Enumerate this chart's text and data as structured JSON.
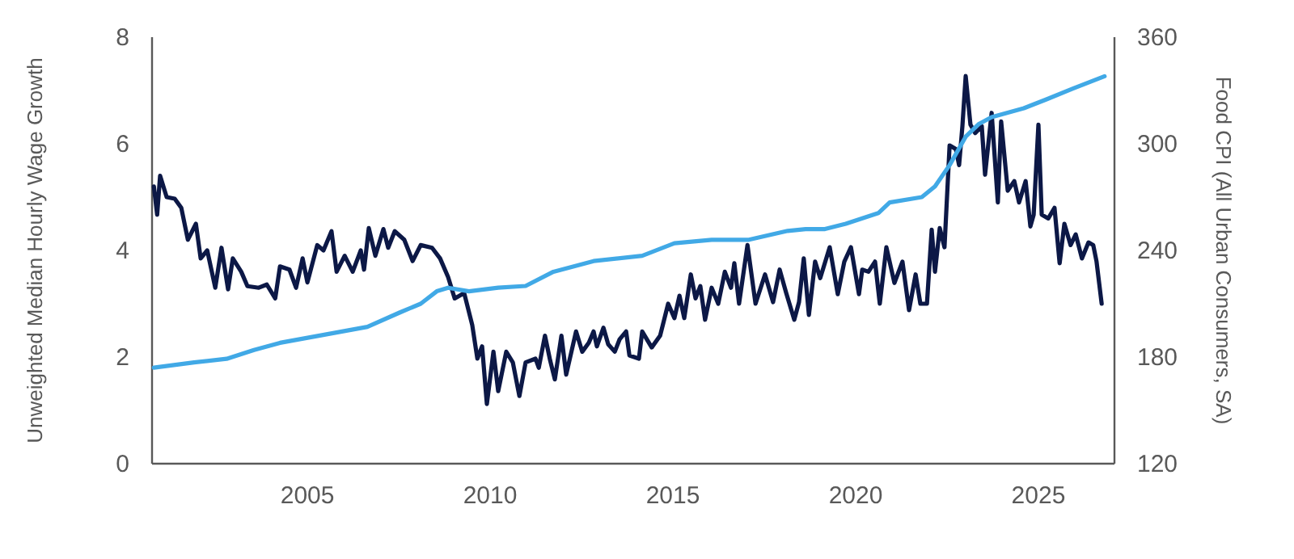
{
  "chart_data": {
    "type": "line",
    "ylabel": "Unweighted Median Hourly Wage Growth",
    "y2label": "Food CPI (All Urban Consumers, SA)",
    "xlim": [
      2000.75,
      2027.08
    ],
    "xticks": [
      2005,
      2010,
      2015,
      2020,
      2025
    ],
    "ylim": [
      0,
      8
    ],
    "yticks": [
      0,
      2,
      4,
      6,
      8
    ],
    "y2lim": [
      120,
      360
    ],
    "y2ticks": [
      120,
      180,
      240,
      300,
      360
    ],
    "grid": false,
    "marker": "none",
    "line_style": "solid",
    "series": [
      {
        "color": "#0c1846",
        "x": [
          2000.8,
          2000.89,
          2000.97,
          2001.15,
          2001.37,
          2001.55,
          2001.73,
          2001.95,
          2002.08,
          2002.26,
          2002.48,
          2002.65,
          2002.83,
          2002.96,
          2003.19,
          2003.36,
          2003.67,
          2003.89,
          2004.12,
          2004.25,
          2004.51,
          2004.69,
          2004.87,
          2005.0,
          2005.27,
          2005.44,
          2005.66,
          2005.8,
          2006.02,
          2006.24,
          2006.46,
          2006.55,
          2006.68,
          2006.86,
          2007.08,
          2007.21,
          2007.39,
          2007.65,
          2007.88,
          2008.1,
          2008.41,
          2008.63,
          2008.85,
          2009.03,
          2009.29,
          2009.51,
          2009.65,
          2009.78,
          2009.91,
          2010.09,
          2010.22,
          2010.44,
          2010.62,
          2010.8,
          2010.97,
          2011.24,
          2011.33,
          2011.5,
          2011.64,
          2011.77,
          2011.95,
          2012.08,
          2012.35,
          2012.52,
          2012.7,
          2012.83,
          2012.92,
          2013.1,
          2013.23,
          2013.41,
          2013.54,
          2013.72,
          2013.81,
          2014.07,
          2014.16,
          2014.42,
          2014.65,
          2014.87,
          2015.04,
          2015.18,
          2015.31,
          2015.49,
          2015.62,
          2015.75,
          2015.88,
          2016.06,
          2016.24,
          2016.42,
          2016.59,
          2016.68,
          2016.81,
          2017.04,
          2017.26,
          2017.52,
          2017.74,
          2017.92,
          2018.1,
          2018.32,
          2018.45,
          2018.58,
          2018.72,
          2018.89,
          2019.03,
          2019.29,
          2019.51,
          2019.69,
          2019.87,
          2020.09,
          2020.18,
          2020.35,
          2020.53,
          2020.66,
          2020.84,
          2021.06,
          2021.28,
          2021.46,
          2021.64,
          2021.77,
          2021.95,
          2022.08,
          2022.17,
          2022.3,
          2022.43,
          2022.57,
          2022.74,
          2022.83,
          2022.92,
          2023.01,
          2023.14,
          2023.27,
          2023.45,
          2023.54,
          2023.72,
          2023.89,
          2023.98,
          2024.16,
          2024.34,
          2024.47,
          2024.65,
          2024.78,
          2024.87,
          2025.0,
          2025.09,
          2025.27,
          2025.44,
          2025.58,
          2025.71,
          2025.88,
          2026.02,
          2026.19,
          2026.37,
          2026.5,
          2026.59,
          2026.73
        ],
        "values": [
          5.2,
          4.67,
          5.4,
          5.0,
          4.97,
          4.8,
          4.2,
          4.5,
          3.85,
          4.0,
          3.3,
          4.05,
          3.27,
          3.85,
          3.6,
          3.33,
          3.3,
          3.36,
          3.1,
          3.7,
          3.64,
          3.3,
          3.85,
          3.4,
          4.1,
          4.0,
          4.36,
          3.6,
          3.9,
          3.6,
          4.0,
          3.64,
          4.42,
          3.9,
          4.4,
          4.05,
          4.36,
          4.2,
          3.8,
          4.1,
          4.05,
          3.85,
          3.5,
          3.1,
          3.2,
          2.6,
          1.97,
          2.2,
          1.12,
          2.1,
          1.36,
          2.1,
          1.9,
          1.27,
          1.9,
          1.97,
          1.8,
          2.4,
          1.94,
          1.58,
          2.4,
          1.67,
          2.48,
          2.1,
          2.27,
          2.48,
          2.2,
          2.55,
          2.24,
          2.1,
          2.33,
          2.48,
          2.03,
          1.97,
          2.48,
          2.18,
          2.4,
          3.0,
          2.73,
          3.15,
          2.73,
          3.55,
          3.1,
          3.33,
          2.7,
          3.3,
          3.0,
          3.6,
          3.3,
          3.76,
          3.0,
          4.1,
          3.0,
          3.55,
          3.03,
          3.64,
          3.2,
          2.7,
          3.03,
          3.85,
          2.79,
          3.79,
          3.48,
          4.06,
          3.18,
          3.79,
          4.06,
          3.18,
          3.64,
          3.6,
          3.79,
          3.0,
          4.06,
          3.39,
          3.79,
          2.88,
          3.55,
          3.0,
          3.0,
          4.39,
          3.6,
          4.42,
          4.06,
          5.97,
          5.9,
          5.6,
          6.33,
          7.27,
          6.36,
          6.2,
          6.33,
          5.42,
          6.58,
          4.9,
          6.42,
          5.12,
          5.3,
          4.9,
          5.3,
          4.45,
          4.67,
          6.36,
          4.67,
          4.6,
          4.8,
          3.76,
          4.5,
          4.1,
          4.3,
          3.85,
          4.15,
          4.1,
          3.79,
          3.0
        ]
      },
      {
        "color": "#41a9e6",
        "axis": "y2",
        "x": [
          2000.8,
          2001.9,
          2002.79,
          2003.54,
          2004.25,
          2005.31,
          2006.64,
          2007.52,
          2008.1,
          2008.54,
          2008.85,
          2009.42,
          2010.22,
          2010.97,
          2011.73,
          2012.83,
          2014.16,
          2015.04,
          2016.06,
          2017.08,
          2018.14,
          2018.63,
          2019.16,
          2019.73,
          2020.62,
          2020.93,
          2021.81,
          2022.17,
          2022.57,
          2023.01,
          2023.36,
          2023.72,
          2024.6,
          2025.22,
          2025.93,
          2026.81
        ],
        "values": [
          174,
          177,
          179,
          184,
          188,
          192,
          197,
          205,
          210,
          217,
          219,
          217,
          219,
          220,
          228,
          234,
          237,
          244,
          246,
          246,
          251,
          252,
          252,
          255,
          261,
          267,
          270,
          276,
          288,
          304,
          311,
          315,
          320,
          325,
          331,
          338
        ]
      }
    ]
  }
}
